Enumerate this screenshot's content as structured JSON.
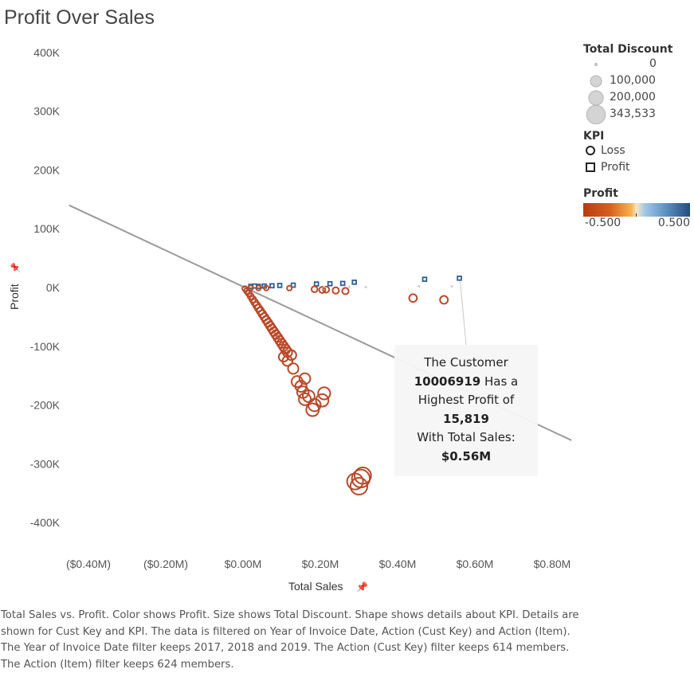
{
  "title": "Profit Over Sales",
  "chart_data": {
    "type": "scatter",
    "title": "Profit Over Sales",
    "xlabel": "Total Sales",
    "ylabel": "Profit",
    "xlim": [
      -0.45,
      0.85
    ],
    "ylim": [
      -450000,
      420000
    ],
    "x_unit": "$M",
    "x_ticks": [
      "($0.40M)",
      "($0.20M)",
      "$0.00M",
      "$0.20M",
      "$0.40M",
      "$0.60M",
      "$0.80M"
    ],
    "x_tick_values": [
      -0.4,
      -0.2,
      0.0,
      0.2,
      0.4,
      0.6,
      0.8
    ],
    "y_ticks": [
      "400K",
      "300K",
      "200K",
      "100K",
      "0K",
      "-100K",
      "-200K",
      "-300K",
      "-400K"
    ],
    "y_tick_values": [
      400000,
      300000,
      200000,
      100000,
      0,
      -100000,
      -200000,
      -300000,
      -400000
    ],
    "grid": false,
    "trend_line": {
      "from": [
        -0.45,
        140000
      ],
      "to": [
        0.85,
        -260000
      ]
    },
    "series": [
      {
        "name": "Profit",
        "shape": "square",
        "color": "#2f5f8e",
        "points": [
          [
            0.02,
            2000,
            0
          ],
          [
            0.03,
            2500,
            0
          ],
          [
            0.04,
            2000,
            0
          ],
          [
            0.055,
            2500,
            0
          ],
          [
            0.075,
            3000,
            0
          ],
          [
            0.095,
            3500,
            0
          ],
          [
            0.13,
            4000,
            0
          ],
          [
            0.19,
            6000,
            0
          ],
          [
            0.225,
            6500,
            0
          ],
          [
            0.258,
            7000,
            0
          ],
          [
            0.288,
            9000,
            0
          ],
          [
            0.47,
            14000,
            0
          ],
          [
            0.56,
            15819,
            0
          ]
        ]
      },
      {
        "name": "Loss",
        "shape": "circle",
        "color": "#b84a2a",
        "points": [
          [
            0.005,
            -2000,
            5000
          ],
          [
            0.01,
            -6000,
            8000
          ],
          [
            0.015,
            -10000,
            10000
          ],
          [
            0.02,
            -15000,
            12000
          ],
          [
            0.025,
            -20000,
            15000
          ],
          [
            0.03,
            -25000,
            18000
          ],
          [
            0.035,
            -30000,
            20000
          ],
          [
            0.04,
            -35000,
            22000
          ],
          [
            0.045,
            -40000,
            25000
          ],
          [
            0.05,
            -45000,
            28000
          ],
          [
            0.055,
            -50000,
            30000
          ],
          [
            0.06,
            -55000,
            33000
          ],
          [
            0.065,
            -60000,
            35000
          ],
          [
            0.07,
            -65000,
            38000
          ],
          [
            0.075,
            -70000,
            40000
          ],
          [
            0.08,
            -75000,
            42000
          ],
          [
            0.085,
            -80000,
            45000
          ],
          [
            0.09,
            -85000,
            48000
          ],
          [
            0.095,
            -90000,
            50000
          ],
          [
            0.1,
            -95000,
            52000
          ],
          [
            0.105,
            -100000,
            55000
          ],
          [
            0.11,
            -105000,
            58000
          ],
          [
            0.115,
            -110000,
            60000
          ],
          [
            0.105,
            -118000,
            62000
          ],
          [
            0.115,
            -125000,
            70000
          ],
          [
            0.125,
            -115000,
            68000
          ],
          [
            0.13,
            -138000,
            80000
          ],
          [
            0.14,
            -160000,
            95000
          ],
          [
            0.15,
            -168000,
            100000
          ],
          [
            0.16,
            -155000,
            90000
          ],
          [
            0.155,
            -178000,
            110000
          ],
          [
            0.16,
            -190000,
            120000
          ],
          [
            0.17,
            -185000,
            115000
          ],
          [
            0.185,
            -200000,
            130000
          ],
          [
            0.18,
            -208000,
            140000
          ],
          [
            0.205,
            -192000,
            135000
          ],
          [
            0.21,
            -180000,
            125000
          ],
          [
            0.29,
            -330000,
            260000
          ],
          [
            0.3,
            -338000,
            300000
          ],
          [
            0.305,
            -325000,
            343533
          ],
          [
            0.31,
            -320000,
            280000
          ],
          [
            0.02,
            -500,
            3000
          ],
          [
            0.04,
            -800,
            3000
          ],
          [
            0.06,
            -900,
            3000
          ],
          [
            0.12,
            -1000,
            3000
          ],
          [
            0.185,
            -3000,
            10000
          ],
          [
            0.205,
            -4000,
            12000
          ],
          [
            0.215,
            -3500,
            12000
          ],
          [
            0.24,
            -5000,
            14000
          ],
          [
            0.265,
            -6000,
            15000
          ],
          [
            0.44,
            -18000,
            30000
          ],
          [
            0.52,
            -21000,
            32000
          ]
        ]
      }
    ],
    "color_legend": {
      "title": "Profit",
      "min_label": "-0.500",
      "max_label": "0.500"
    },
    "size_legend": {
      "title": "Total Discount",
      "labels": [
        "0",
        "100,000",
        "200,000",
        "343,533"
      ]
    },
    "shape_legend": {
      "title": "KPI",
      "labels": [
        "Loss",
        "Profit"
      ]
    }
  },
  "tooltip": {
    "line1": "The Customer",
    "customer_id": "10006919",
    "line2_suffix": " Has a",
    "line3": "Highest Profit of",
    "profit_value": "15,819",
    "line5": "With Total Sales:",
    "sales_value": "$0.56M"
  },
  "caption": "Total Sales vs. Profit.  Color shows Profit.  Size shows Total Discount.  Shape shows details about KPI.  Details are shown for Cust Key and KPI. The data is filtered on Year of Invoice Date, Action (Cust Key) and Action (Item). The Year of Invoice Date filter keeps 2017, 2018 and 2019. The Action (Cust Key) filter keeps 614 members. The Action (Item) filter keeps 624 members.",
  "colors": {
    "loss": "#b84a2a",
    "profit": "#2f5f8e",
    "trend": "#9a9a9a",
    "size_legend": "#c8c8c8"
  }
}
